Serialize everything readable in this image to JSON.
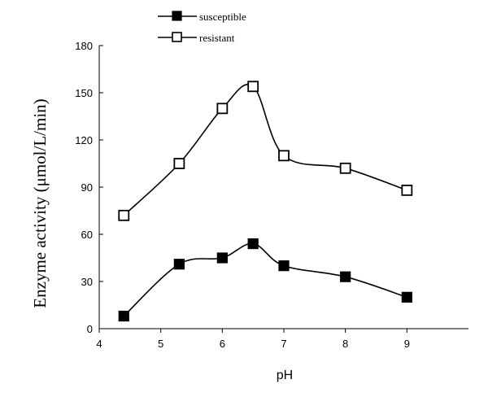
{
  "chart_data": {
    "type": "line",
    "title": "",
    "xlabel": "pH",
    "ylabel": "Enzyme activity (μmol/L/min)",
    "xlim": [
      4,
      10
    ],
    "ylim": [
      0,
      180
    ],
    "x_ticks": [
      "4",
      "5",
      "6",
      "7",
      "8",
      "9"
    ],
    "y_ticks": [
      "0",
      "30",
      "60",
      "90",
      "120",
      "150",
      "180"
    ],
    "legend_position": "top-left",
    "grid": false,
    "series": [
      {
        "name": "susceptible",
        "marker": "filled-square",
        "color": "#000000",
        "x": [
          4.4,
          5.3,
          6,
          6.5,
          7,
          8,
          9
        ],
        "y": [
          8,
          41,
          45,
          54,
          40,
          33,
          20
        ]
      },
      {
        "name": "resistant",
        "marker": "open-square",
        "color": "#000000",
        "x": [
          4.4,
          5.3,
          6,
          6.5,
          7,
          8,
          9
        ],
        "y": [
          72,
          105,
          140,
          154,
          110,
          102,
          88
        ]
      }
    ]
  }
}
